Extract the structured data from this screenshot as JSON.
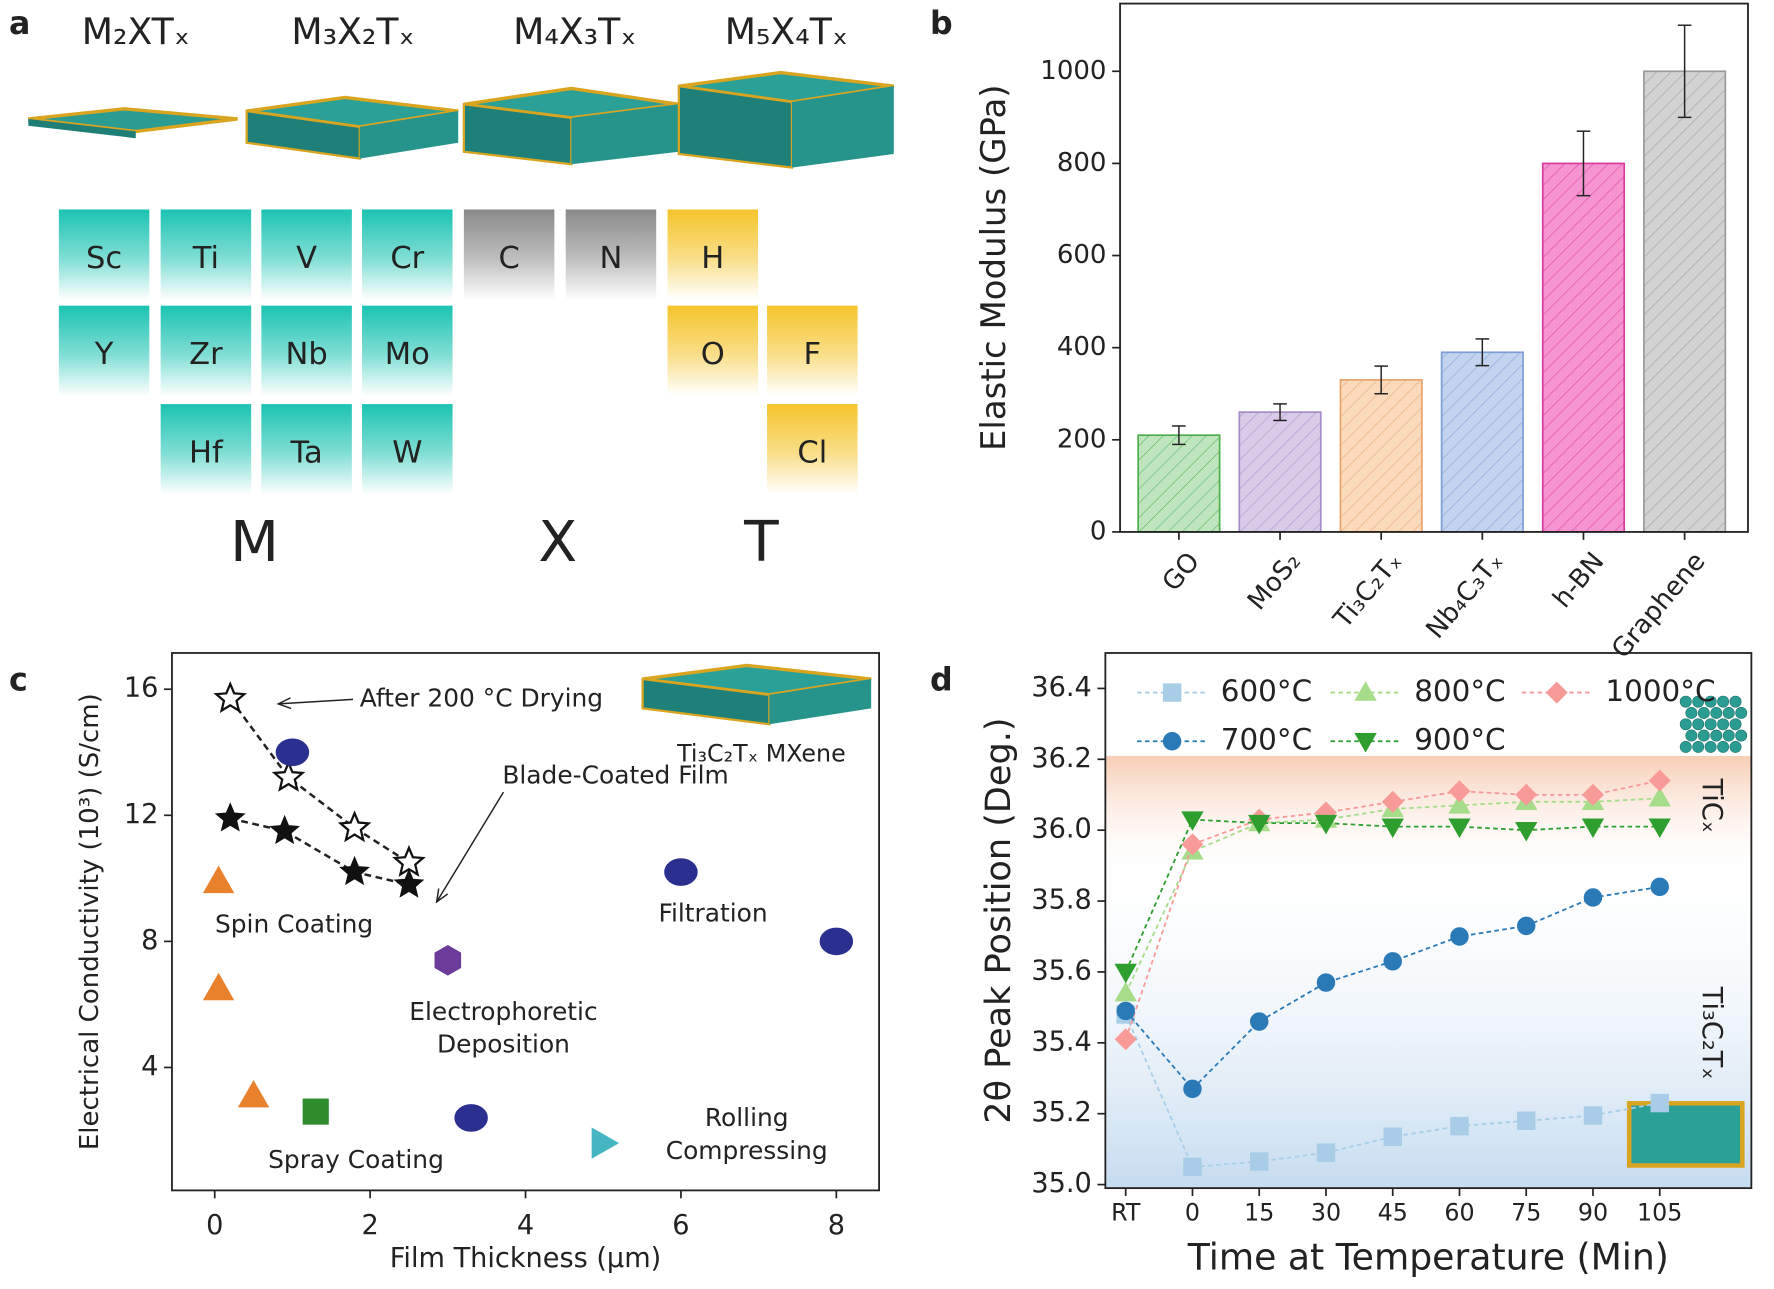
{
  "panel_a": {
    "label": "a",
    "formulas": [
      "M₂XTₓ",
      "M₃X₂Tₓ",
      "M₄X₃Tₓ",
      "M₅X₄Tₓ"
    ],
    "groups": [
      {
        "name": "M",
        "color": "#1cc3b2",
        "elements": [
          "Sc",
          "Ti",
          "V",
          "Cr",
          "Y",
          "Zr",
          "Nb",
          "Mo",
          "Hf",
          "Ta",
          "W"
        ]
      },
      {
        "name": "X",
        "color": "#8a8a8a",
        "elements": [
          "C",
          "N"
        ]
      },
      {
        "name": "T",
        "color": "#f5c42c",
        "elements": [
          "H",
          "O",
          "F",
          "Cl"
        ]
      }
    ]
  },
  "chart_data": [
    {
      "type": "bar",
      "panel_label": "b",
      "y_label": "Elastic Modulus (GPa)",
      "categories": [
        "GO",
        "MoS₂",
        "Ti₃C₂Tₓ",
        "Nb₄C₃Tₓ",
        "h-BN",
        "Graphene"
      ],
      "values": [
        210,
        260,
        330,
        390,
        800,
        1000
      ],
      "errors": [
        20,
        18,
        30,
        29,
        70,
        100
      ],
      "colors": [
        "#bfe5bf",
        "#d9cbe8",
        "#fbd9bb",
        "#c3d2ef",
        "#f594cf",
        "#d2d2d2"
      ],
      "edge_colors": [
        "#4cae4c",
        "#a58cc9",
        "#e9a46a",
        "#7d9fd6",
        "#d93c9f",
        "#9a9a9a"
      ],
      "hatch": true,
      "ylim": [
        0,
        1147
      ],
      "yticks": [
        0,
        200,
        400,
        600,
        800,
        1000
      ]
    },
    {
      "type": "scatter",
      "panel_label": "c",
      "x_label": "Film Thickness (μm)",
      "y_label": "Electrical Conductivity (10³) (S/cm)",
      "annotation": "Ti₃C₂Tₓ MXene",
      "xlim": [
        -0.55,
        8.55
      ],
      "ylim": [
        0.1,
        17.15
      ],
      "xticks": [
        0,
        2,
        4,
        6,
        8
      ],
      "yticks": [
        4,
        8,
        12,
        16
      ],
      "series": [
        {
          "name_lines": [
            "After 200 °C Drying"
          ],
          "color": "#111111",
          "marker": "open-star",
          "connected": true,
          "x": [
            0.2,
            0.95,
            1.8,
            2.5
          ],
          "values": [
            15.7,
            13.2,
            11.6,
            10.5
          ]
        },
        {
          "name_lines": [
            "Blade-Coated Film"
          ],
          "color": "#111111",
          "marker": "star",
          "connected": true,
          "x": [
            0.2,
            0.9,
            1.8,
            2.5
          ],
          "values": [
            11.9,
            11.5,
            10.2,
            9.8
          ]
        },
        {
          "name_lines": [
            "Spin Coating"
          ],
          "color": "#e8802c",
          "marker": "triangle",
          "x": [
            0.05,
            0.05,
            0.5
          ],
          "values": [
            9.9,
            6.5,
            3.1
          ]
        },
        {
          "name_lines": [
            "Spray Coating"
          ],
          "color": "#2e8b2e",
          "marker": "square",
          "x": [
            1.3
          ],
          "values": [
            2.6
          ]
        },
        {
          "name_lines": [
            "Filtration"
          ],
          "color": "#2b2f8f",
          "marker": "ellipse",
          "x": [
            1.0,
            6.0,
            8.0,
            3.3
          ],
          "values": [
            14.0,
            10.2,
            8.0,
            2.4
          ]
        },
        {
          "name_lines": [
            "Electrophoretic",
            "Deposition"
          ],
          "color": "#6b3c9a",
          "marker": "hexagon",
          "x": [
            3.0
          ],
          "values": [
            7.4
          ]
        },
        {
          "name_lines": [
            "Rolling",
            "Compressing"
          ],
          "color": "#45b6c1",
          "marker": "right-triangle",
          "x": [
            5.0
          ],
          "values": [
            1.6
          ]
        }
      ]
    },
    {
      "type": "line",
      "panel_label": "d",
      "x_label": "Time at Temperature (Min)",
      "y_label": "2θ Peak Position (Deg.)",
      "categories": [
        "RT",
        "0",
        "15",
        "30",
        "45",
        "60",
        "75",
        "90",
        "105"
      ],
      "annotations": [
        "TiCₓ",
        "Ti₃C₂Tₓ"
      ],
      "ylim": [
        34.99,
        36.5
      ],
      "yticks": [
        {
          "value": 35,
          "label": "35.0"
        },
        35.2,
        35.4,
        35.6,
        35.8,
        {
          "value": 36,
          "label": "36.0"
        },
        36.2,
        36.4
      ],
      "series": [
        {
          "name": "600°C",
          "color": "#a9cde6",
          "marker": "square",
          "values": [
            35.48,
            35.05,
            35.065,
            35.09,
            35.135,
            35.165,
            35.18,
            35.195,
            35.23
          ]
        },
        {
          "name": "800°C",
          "color": "#a6dc8a",
          "marker": "triangle",
          "values": [
            35.54,
            35.94,
            36.02,
            36.03,
            36.06,
            36.07,
            36.08,
            36.08,
            36.09
          ]
        },
        {
          "name": "1000°C",
          "color": "#f79a98",
          "marker": "diamond",
          "values": [
            35.41,
            35.96,
            36.03,
            36.05,
            36.08,
            36.11,
            36.1,
            36.1,
            36.14
          ]
        },
        {
          "name": "700°C",
          "color": "#2a7ab8",
          "marker": "circle",
          "values": [
            35.49,
            35.27,
            35.46,
            35.57,
            35.63,
            35.7,
            35.73,
            35.81,
            35.84
          ]
        },
        {
          "name": "900°C",
          "color": "#2e9e2e",
          "marker": "down-triangle",
          "values": [
            35.6,
            36.03,
            36.02,
            36.02,
            36.01,
            36.01,
            36.0,
            36.01,
            36.01
          ]
        }
      ]
    }
  ]
}
